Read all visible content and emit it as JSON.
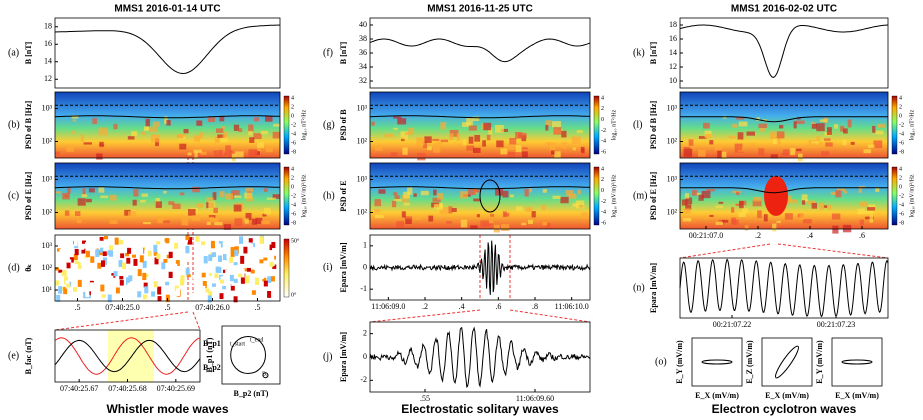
{
  "columns": [
    {
      "title": "MMS1 2016-01-14 UTC",
      "caption": "Whistler mode waves",
      "panels": [
        {
          "label": "(a)",
          "ylabel": "B [nT]",
          "yticks": [
            "18",
            "16",
            "14",
            "12"
          ]
        },
        {
          "label": "(b)",
          "ylabel": "PSD of B [Hz]",
          "yticks": [
            "10³",
            "10²"
          ],
          "cbticks": [
            "4",
            "2",
            "0",
            "-2",
            "-4",
            "-6",
            "-8"
          ],
          "cblabel": "log₁₀ nT²/Hz"
        },
        {
          "label": "(c)",
          "ylabel": "PSD of E [Hz]",
          "yticks": [
            "10³",
            "10²"
          ],
          "cbticks": [
            "4",
            "2",
            "0",
            "-2",
            "-4",
            "-6",
            "-8"
          ],
          "cblabel": "log₁₀ (mV/m)²/Hz"
        },
        {
          "label": "(d)",
          "ylabel": "θₖ",
          "yticks": [
            "10³",
            "10²",
            "10¹"
          ],
          "cbticks": [
            "50°",
            "0°"
          ],
          "xticks": [
            ".5",
            "07:40:25.0",
            ".5",
            "07:40:26.0",
            ".5"
          ]
        },
        {
          "label": "(e)",
          "ylabel": "B_fac (nT)",
          "xticks": [
            "07:40:25.67",
            "07:40:25.68",
            "07:40:25.69"
          ],
          "legend": [
            "B_p1",
            "B_p2"
          ]
        },
        {
          "xlabel": "B_p2 (nT)",
          "ylabel": "B_p1 (nT)",
          "annotations": [
            "t_start",
            "t_end",
            "B₀"
          ]
        }
      ]
    },
    {
      "title": "MMS1 2016-11-25 UTC",
      "caption": "Electrostatic solitary waves",
      "panels": [
        {
          "label": "(f)",
          "ylabel": "B [nT]",
          "yticks": [
            "40",
            "38",
            "36",
            "34",
            "32"
          ]
        },
        {
          "label": "(g)",
          "ylabel": "PSD of B",
          "yticks": [
            "10³",
            "10²"
          ],
          "cbticks": [
            "4",
            "2",
            "0",
            "-2",
            "-4",
            "-6"
          ],
          "cblabel": "log₁₀ nT²/Hz"
        },
        {
          "label": "(h)",
          "ylabel": "PSD of E",
          "yticks": [
            "10³",
            "10²"
          ],
          "cbticks": [
            "4",
            "2",
            "0",
            "-2",
            "-4",
            "-6"
          ],
          "cblabel": "log₁₀ (mV/m)²/Hz"
        },
        {
          "label": "(i)",
          "ylabel": "Epara [mV/m]",
          "yticks": [
            "1",
            "0",
            "-1"
          ],
          "xticks": [
            "11:06:09.0",
            ".2",
            ".4",
            ".6",
            ".8",
            "11:06:10.0"
          ]
        },
        {
          "label": "(j)",
          "ylabel": "Epara [mV/m]",
          "yticks": [
            "2",
            "0",
            "-2"
          ],
          "xticks": [
            ".55",
            "11:06:09.60"
          ]
        }
      ]
    },
    {
      "title": "MMS1 2016-02-02 UTC",
      "caption": "Electron cyclotron waves",
      "panels": [
        {
          "label": "(k)",
          "ylabel": "B [nT]",
          "yticks": [
            "18",
            "16",
            "14",
            "12",
            "10"
          ]
        },
        {
          "label": "(l)",
          "ylabel": "PSD of B [Hz]",
          "yticks": [
            "10³",
            "10²"
          ],
          "cbticks": [
            "4",
            "2",
            "0",
            "-2",
            "-4",
            "-6",
            "-8"
          ],
          "cblabel": "log₁₀ nT²/Hz"
        },
        {
          "label": "(m)",
          "ylabel": "PSD of E [Hz]",
          "yticks": [
            "10³",
            "10²"
          ],
          "cbticks": [
            "4",
            "2",
            "0",
            "-2",
            "-4",
            "-6",
            "-8"
          ],
          "cblabel": "log₁₀ (mV/m)²/Hz",
          "xticks": [
            "00:21:07.0",
            ".2",
            ".4",
            ".6"
          ]
        },
        {
          "label": "(n)",
          "ylabel": "Epara [mV/m]",
          "xticks": [
            "00:21:07.22",
            "00:21:07.23"
          ]
        },
        {
          "label": "(o)",
          "ylabel": "E_Y (mV/m)",
          "xlabel": "E_X (mV/m)"
        },
        {
          "ylabel": "E_Z (mV/m)",
          "xlabel": "E_X (mV/m)"
        },
        {
          "ylabel": "E_Y (mV/m)",
          "xlabel": "E_X (mV/m)"
        }
      ]
    }
  ]
}
